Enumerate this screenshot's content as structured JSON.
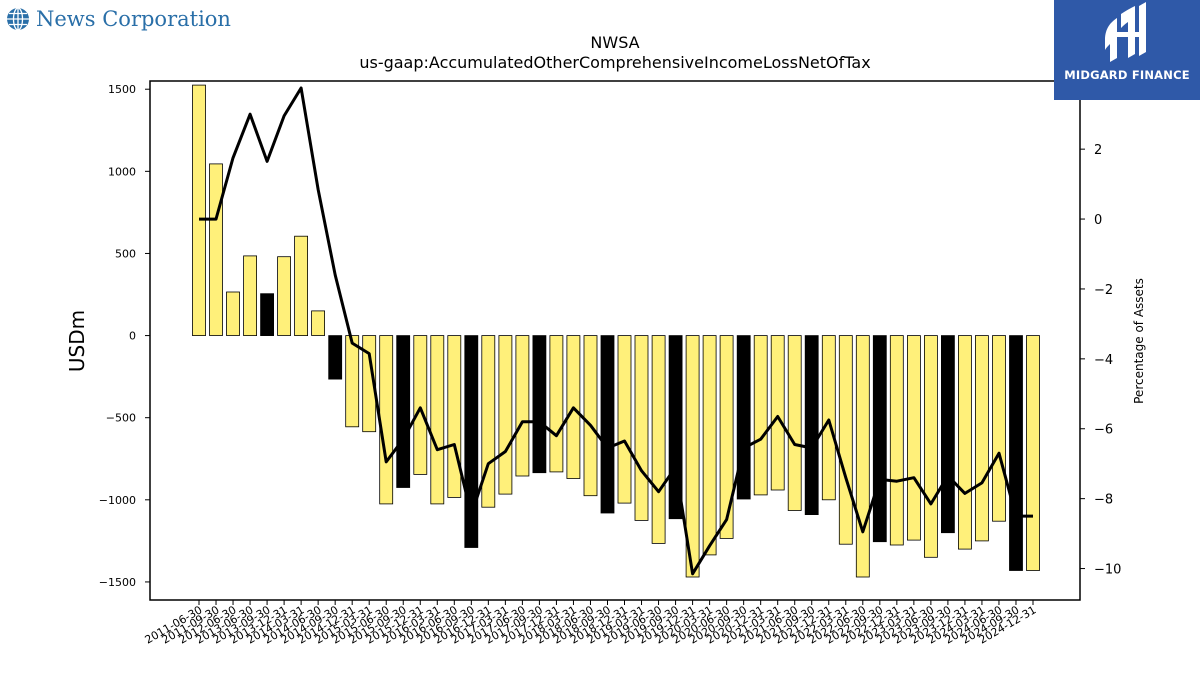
{
  "brand": {
    "name": "News Corporation",
    "icon": "globe-icon"
  },
  "watermark": {
    "label": "MIDGARD FINANCE",
    "icon": "midgard-logo-icon",
    "color": "#2f59a8"
  },
  "chart_data": {
    "type": "bar",
    "title": "NWSA",
    "subtitle": "us-gaap:AccumulatedOtherComprehensiveIncomeLossNetOfTax",
    "ylabel": "USDm",
    "y2label": "Percentage of Assets",
    "ylim": [
      -1610,
      1550
    ],
    "y2lim": [
      -10.9,
      3.95
    ],
    "yticks": [
      -1500,
      -1000,
      -500,
      0,
      500,
      1000,
      1500
    ],
    "y2ticks": [
      -10,
      -8,
      -6,
      -4,
      -2,
      0,
      2
    ],
    "grid": false,
    "colors": {
      "bar_default": "#fff07a",
      "bar_highlight": "#000000",
      "line": "#000000",
      "bar_edge": "#000000"
    },
    "categories": [
      "2011-06-30",
      "2011-09-30",
      "2012-06-30",
      "2013-06-30",
      "2013-09-30",
      "2013-12-31",
      "2014-03-31",
      "2014-06-30",
      "2014-09-30",
      "2014-12-31",
      "2015-03-31",
      "2015-06-30",
      "2015-09-30",
      "2015-12-31",
      "2016-03-31",
      "2016-06-30",
      "2016-09-30",
      "2016-12-31",
      "2017-03-31",
      "2017-06-30",
      "2017-09-30",
      "2017-12-31",
      "2018-03-31",
      "2018-06-30",
      "2018-09-30",
      "2018-12-31",
      "2019-03-31",
      "2019-06-30",
      "2019-09-30",
      "2019-12-31",
      "2020-03-31",
      "2020-06-30",
      "2020-09-30",
      "2020-12-31",
      "2021-03-31",
      "2021-06-30",
      "2021-09-30",
      "2021-12-31",
      "2022-03-31",
      "2022-06-30",
      "2022-09-30",
      "2022-12-31",
      "2023-03-31",
      "2023-06-30",
      "2023-09-30",
      "2023-12-31",
      "2024-03-31",
      "2024-06-30",
      "2024-09-30",
      "2024-12-31"
    ],
    "highlight": [
      false,
      false,
      false,
      false,
      true,
      false,
      false,
      false,
      true,
      false,
      false,
      false,
      true,
      false,
      false,
      false,
      true,
      false,
      false,
      false,
      true,
      false,
      false,
      false,
      true,
      false,
      false,
      false,
      true,
      false,
      false,
      false,
      true,
      false,
      false,
      false,
      true,
      false,
      false,
      false,
      true,
      false,
      false,
      false,
      true,
      false,
      false,
      false,
      true,
      false
    ],
    "series": [
      {
        "name": "USDm",
        "type": "bar",
        "values": [
          1525,
          1045,
          265,
          485,
          255,
          480,
          605,
          150,
          -265,
          -555,
          -585,
          -1025,
          -925,
          -845,
          -1025,
          -985,
          -1290,
          -1045,
          -965,
          -855,
          -835,
          -830,
          -870,
          -975,
          -1080,
          -1020,
          -1125,
          -1265,
          -1115,
          -1470,
          -1335,
          -1235,
          -995,
          -970,
          -940,
          -1065,
          -1090,
          -1000,
          -1270,
          -1470,
          -1255,
          -1275,
          -1245,
          -1350,
          -1200,
          -1300,
          -1250,
          -1130,
          -1430,
          -1430
        ]
      },
      {
        "name": "Percentage of Assets",
        "type": "line",
        "axis": "right",
        "values": [
          0.0,
          0.0,
          1.75,
          3.0,
          1.65,
          2.95,
          3.75,
          0.85,
          -1.6,
          -3.55,
          -3.85,
          -6.95,
          -6.3,
          -5.4,
          -6.6,
          -6.45,
          -8.45,
          -7.0,
          -6.65,
          -5.8,
          -5.8,
          -6.2,
          -5.4,
          -5.9,
          -6.55,
          -6.35,
          -7.2,
          -7.8,
          -7.1,
          -10.15,
          -9.35,
          -8.6,
          -6.55,
          -6.3,
          -5.65,
          -6.45,
          -6.55,
          -5.75,
          -7.4,
          -8.95,
          -7.45,
          -7.5,
          -7.4,
          -8.15,
          -7.35,
          -7.85,
          -7.55,
          -6.7,
          -8.5,
          -8.5
        ]
      }
    ]
  }
}
